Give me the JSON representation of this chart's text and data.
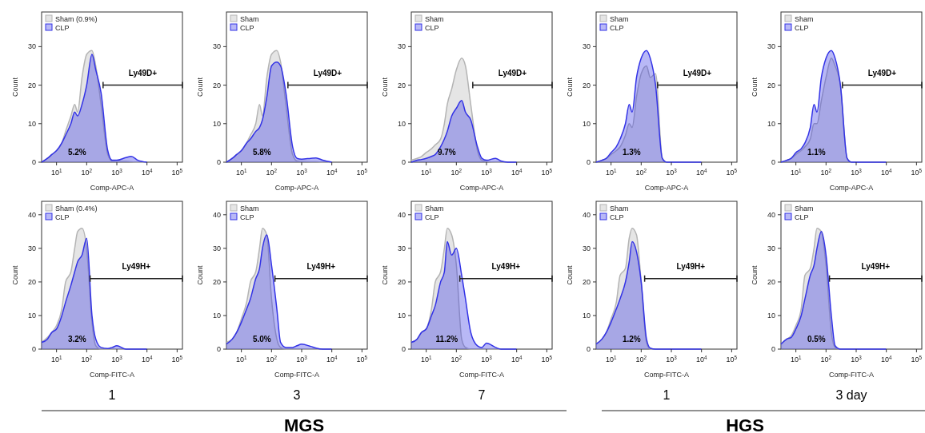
{
  "chart_data": [
    {
      "type": "area",
      "xlabel": "Comp-APC-A",
      "ylabel": "Count",
      "log": "x",
      "legend": "top left",
      "xlim": [
        3.2,
        150000
      ],
      "ylim": [
        0,
        39
      ],
      "xticks": [
        {
          "value": 10,
          "label": "10$^{1}$"
        },
        {
          "value": 100,
          "label": "10$^{2}$"
        },
        {
          "value": 1000,
          "label": "10$^{3}$"
        },
        {
          "value": 10000,
          "label": "10$^{4}$"
        },
        {
          "value": 100000,
          "label": "10$^{5}$"
        }
      ],
      "yticks": [
        0,
        10,
        20,
        30
      ],
      "x": [
        3.2,
        5,
        7,
        10,
        15,
        20,
        30,
        40,
        50,
        70,
        100,
        150,
        200,
        300,
        500,
        700,
        1000,
        2000,
        3000,
        5000,
        10000
      ],
      "series": [
        {
          "name": "Sham (0.9%)",
          "color": "#b4b4b4",
          "values": [
            0,
            1,
            2,
            3,
            5,
            8,
            12,
            15,
            13,
            22,
            28,
            29,
            25,
            15,
            2,
            0.3,
            0.2,
            0.2,
            0.1,
            0,
            0
          ]
        },
        {
          "name": "CLP",
          "color": "#3333e6",
          "values": [
            0,
            1,
            2,
            3,
            5,
            7,
            10,
            13,
            12,
            15,
            20,
            28,
            24,
            18,
            3,
            0.5,
            0.5,
            1.2,
            1.5,
            0.5,
            0
          ]
        },
        {
          "name": "Ly49D+",
          "type": "line",
          "color": "#222222",
          "x": [
            350,
            150000
          ],
          "values": [
            20,
            20
          ]
        }
      ],
      "annotations": [
        "5.2%"
      ]
    },
    {
      "type": "area",
      "xlabel": "Comp-APC-A",
      "ylabel": "Count",
      "log": "x",
      "legend": "top left",
      "xlim": [
        3.2,
        150000
      ],
      "ylim": [
        0,
        39
      ],
      "xticks": [
        {
          "value": 10,
          "label": "10$^{1}$"
        },
        {
          "value": 100,
          "label": "10$^{2}$"
        },
        {
          "value": 1000,
          "label": "10$^{3}$"
        },
        {
          "value": 10000,
          "label": "10$^{4}$"
        },
        {
          "value": 100000,
          "label": "10$^{5}$"
        }
      ],
      "yticks": [
        0,
        10,
        20,
        30
      ],
      "x": [
        3.2,
        5,
        7,
        10,
        15,
        20,
        30,
        40,
        50,
        70,
        100,
        150,
        200,
        300,
        500,
        700,
        1000,
        2000,
        3000,
        5000,
        10000
      ],
      "series": [
        {
          "name": "Sham",
          "color": "#b4b4b4",
          "values": [
            0,
            1,
            2,
            3,
            5,
            7,
            10,
            15,
            12,
            22,
            28,
            29,
            26,
            15,
            2,
            0.3,
            0.2,
            0.1,
            0.1,
            0,
            0
          ]
        },
        {
          "name": "CLP",
          "color": "#3333e6",
          "values": [
            0,
            1,
            2,
            3,
            5,
            6,
            8,
            9,
            11,
            17,
            25,
            26,
            25,
            18,
            4,
            1,
            0.8,
            1,
            1.1,
            0.5,
            0
          ]
        },
        {
          "name": "Ly49D+",
          "type": "line",
          "color": "#222222",
          "x": [
            350,
            150000
          ],
          "values": [
            20,
            20
          ]
        }
      ],
      "annotations": [
        "5.8%"
      ]
    },
    {
      "type": "area",
      "xlabel": "Comp-APC-A",
      "ylabel": "Count",
      "log": "x",
      "legend": "top left",
      "xlim": [
        3.2,
        150000
      ],
      "ylim": [
        0,
        39
      ],
      "xticks": [
        {
          "value": 10,
          "label": "10$^{1}$"
        },
        {
          "value": 100,
          "label": "10$^{2}$"
        },
        {
          "value": 1000,
          "label": "10$^{3}$"
        },
        {
          "value": 10000,
          "label": "10$^{4}$"
        },
        {
          "value": 100000,
          "label": "10$^{5}$"
        }
      ],
      "yticks": [
        0,
        10,
        20,
        30
      ],
      "x": [
        3.2,
        5,
        7,
        10,
        15,
        20,
        30,
        40,
        50,
        70,
        100,
        150,
        200,
        300,
        500,
        700,
        1000,
        2000,
        3000,
        5000,
        10000
      ],
      "series": [
        {
          "name": "Sham",
          "color": "#b4b4b4",
          "values": [
            0.5,
            1,
            1.5,
            2.5,
            3.5,
            4.5,
            6,
            10,
            15,
            19,
            24,
            27,
            25,
            15,
            3,
            0.5,
            0.2,
            0,
            0,
            0,
            0
          ]
        },
        {
          "name": "CLP",
          "color": "#3333e6",
          "values": [
            0,
            0.5,
            0.7,
            1,
            1.5,
            2,
            4,
            6,
            8,
            12,
            14,
            16,
            13,
            11,
            4,
            1,
            0.5,
            1,
            0.3,
            0,
            0
          ]
        },
        {
          "name": "Ly49D+",
          "type": "line",
          "color": "#222222",
          "x": [
            350,
            150000
          ],
          "values": [
            20,
            20
          ]
        }
      ],
      "annotations": [
        "9.7%"
      ]
    },
    {
      "type": "area",
      "xlabel": "Comp-APC-A",
      "ylabel": "Count",
      "log": "x",
      "legend": "top left",
      "xlim": [
        3.2,
        150000
      ],
      "ylim": [
        0,
        39
      ],
      "xticks": [
        {
          "value": 10,
          "label": "10$^{1}$"
        },
        {
          "value": 100,
          "label": "10$^{2}$"
        },
        {
          "value": 1000,
          "label": "10$^{3}$"
        },
        {
          "value": 10000,
          "label": "10$^{4}$"
        },
        {
          "value": 100000,
          "label": "10$^{5}$"
        }
      ],
      "yticks": [
        0,
        10,
        20,
        30
      ],
      "x": [
        3.2,
        5,
        7,
        10,
        15,
        20,
        30,
        40,
        50,
        70,
        100,
        150,
        200,
        300,
        500,
        700,
        1000,
        2000,
        3000,
        5000,
        10000
      ],
      "series": [
        {
          "name": "Sham",
          "color": "#b4b4b4",
          "values": [
            0,
            0.5,
            1,
            2,
            3,
            4,
            7,
            10,
            9,
            17,
            23,
            25,
            22,
            23,
            1,
            0,
            0,
            0,
            0,
            0,
            0
          ]
        },
        {
          "name": "CLP",
          "color": "#3333e6",
          "values": [
            0,
            0.5,
            1,
            2.5,
            4,
            6,
            10,
            15,
            13,
            22,
            27,
            29,
            27,
            20,
            1,
            0,
            0,
            0,
            0,
            0,
            0
          ]
        },
        {
          "name": "Ly49D+",
          "type": "line",
          "color": "#222222",
          "x": [
            350,
            150000
          ],
          "values": [
            20,
            20
          ]
        }
      ],
      "annotations": [
        "1.3%"
      ]
    },
    {
      "type": "area",
      "xlabel": "Comp-APC-A",
      "ylabel": "Count",
      "log": "x",
      "legend": "top left",
      "xlim": [
        3.2,
        150000
      ],
      "ylim": [
        0,
        39
      ],
      "xticks": [
        {
          "value": 10,
          "label": "10$^{1}$"
        },
        {
          "value": 100,
          "label": "10$^{2}$"
        },
        {
          "value": 1000,
          "label": "10$^{3}$"
        },
        {
          "value": 10000,
          "label": "10$^{4}$"
        },
        {
          "value": 100000,
          "label": "10$^{5}$"
        }
      ],
      "yticks": [
        0,
        10,
        20,
        30
      ],
      "x": [
        3.2,
        5,
        7,
        10,
        15,
        20,
        30,
        40,
        50,
        70,
        100,
        150,
        200,
        300,
        500,
        700,
        1000,
        2000,
        3000,
        5000,
        10000
      ],
      "series": [
        {
          "name": "Sham",
          "color": "#b4b4b4",
          "values": [
            0,
            0.5,
            1,
            2,
            3,
            4,
            6,
            10,
            10,
            16,
            22,
            27,
            25,
            20,
            1,
            0,
            0,
            0,
            0,
            0,
            0
          ]
        },
        {
          "name": "CLP",
          "color": "#3333e6",
          "values": [
            0,
            0.5,
            1,
            2.5,
            3.5,
            5,
            9,
            15,
            13,
            22,
            27,
            29,
            27,
            20,
            1,
            0,
            0,
            0,
            0,
            0,
            0
          ]
        },
        {
          "name": "Ly49D+",
          "type": "line",
          "color": "#222222",
          "x": [
            350,
            150000
          ],
          "values": [
            20,
            20
          ]
        }
      ],
      "annotations": [
        "1.1%"
      ]
    },
    {
      "type": "area",
      "xlabel": "Comp-FITC-A",
      "ylabel": "Count",
      "log": "x",
      "legend": "top left",
      "xlim": [
        3.2,
        150000
      ],
      "ylim": [
        0,
        44
      ],
      "xticks": [
        {
          "value": 10,
          "label": "10$^{1}$"
        },
        {
          "value": 100,
          "label": "10$^{2}$"
        },
        {
          "value": 1000,
          "label": "10$^{3}$"
        },
        {
          "value": 10000,
          "label": "10$^{4}$"
        },
        {
          "value": 100000,
          "label": "10$^{5}$"
        }
      ],
      "yticks": [
        0,
        10,
        20,
        30,
        40
      ],
      "x": [
        3.2,
        5,
        7,
        10,
        15,
        20,
        30,
        40,
        50,
        70,
        100,
        150,
        200,
        300,
        500,
        700,
        1000,
        2000,
        3000,
        5000,
        10000
      ],
      "series": [
        {
          "name": "Sham (0.4%)",
          "color": "#b4b4b4",
          "values": [
            2,
            3.5,
            5,
            7,
            12,
            20,
            23,
            30,
            35,
            36,
            30,
            8,
            1,
            0,
            0,
            0,
            0,
            0,
            0,
            0,
            0
          ]
        },
        {
          "name": "CLP",
          "color": "#3333e6",
          "values": [
            2,
            3,
            5,
            6,
            10,
            14,
            19,
            23,
            26,
            28,
            33,
            10,
            3,
            0.5,
            0.2,
            0.5,
            1,
            0,
            0,
            0,
            0
          ]
        },
        {
          "name": "Ly49H+",
          "type": "line",
          "color": "#222222",
          "x": [
            130,
            150000
          ],
          "values": [
            21,
            21
          ]
        }
      ],
      "annotations": [
        "3.2%",
        "1"
      ]
    },
    {
      "type": "area",
      "xlabel": "Comp-FITC-A",
      "ylabel": "Count",
      "log": "x",
      "legend": "top left",
      "xlim": [
        3.2,
        150000
      ],
      "ylim": [
        0,
        44
      ],
      "xticks": [
        {
          "value": 10,
          "label": "10$^{1}$"
        },
        {
          "value": 100,
          "label": "10$^{2}$"
        },
        {
          "value": 1000,
          "label": "10$^{3}$"
        },
        {
          "value": 10000,
          "label": "10$^{4}$"
        },
        {
          "value": 100000,
          "label": "10$^{5}$"
        }
      ],
      "yticks": [
        0,
        10,
        20,
        30,
        40
      ],
      "x": [
        3.2,
        5,
        7,
        10,
        15,
        20,
        30,
        40,
        50,
        70,
        100,
        150,
        200,
        300,
        500,
        700,
        1000,
        2000,
        3000,
        5000,
        10000
      ],
      "series": [
        {
          "name": "Sham",
          "color": "#b4b4b4",
          "values": [
            2,
            3,
            5,
            9,
            14,
            20,
            23,
            30,
            36,
            34,
            15,
            3,
            0.5,
            0,
            0,
            0,
            0,
            0,
            0,
            0,
            0
          ]
        },
        {
          "name": "CLP",
          "color": "#3333e6",
          "values": [
            1.5,
            3,
            5,
            8,
            12,
            15,
            21,
            24,
            30,
            34,
            25,
            12,
            2,
            0.5,
            0.5,
            1,
            1.5,
            0.8,
            0.3,
            0,
            0
          ]
        },
        {
          "name": "Ly49H+",
          "type": "line",
          "color": "#222222",
          "x": [
            130,
            150000
          ],
          "values": [
            21,
            21
          ]
        }
      ],
      "annotations": [
        "5.0%",
        "3"
      ]
    },
    {
      "type": "area",
      "xlabel": "Comp-FITC-A",
      "ylabel": "Count",
      "log": "x",
      "legend": "top left",
      "xlim": [
        3.2,
        150000
      ],
      "ylim": [
        0,
        44
      ],
      "xticks": [
        {
          "value": 10,
          "label": "10$^{1}$"
        },
        {
          "value": 100,
          "label": "10$^{2}$"
        },
        {
          "value": 1000,
          "label": "10$^{3}$"
        },
        {
          "value": 10000,
          "label": "10$^{4}$"
        },
        {
          "value": 100000,
          "label": "10$^{5}$"
        }
      ],
      "yticks": [
        0,
        10,
        20,
        30,
        40
      ],
      "x": [
        3.2,
        5,
        7,
        10,
        15,
        20,
        30,
        40,
        50,
        70,
        100,
        150,
        200,
        300,
        500,
        700,
        1000,
        2000,
        3000,
        5000,
        10000
      ],
      "series": [
        {
          "name": "Sham",
          "color": "#b4b4b4",
          "values": [
            2,
            3,
            5,
            6,
            12,
            20,
            23,
            30,
            36,
            34,
            25,
            3,
            0.5,
            0,
            0,
            0,
            0,
            0,
            0,
            0,
            0
          ]
        },
        {
          "name": "CLP",
          "color": "#3333e6",
          "values": [
            2,
            3,
            5,
            6,
            10,
            13,
            20,
            23,
            32,
            28,
            30,
            22,
            15,
            5,
            1,
            0.5,
            1.8,
            0.5,
            0,
            0,
            0
          ]
        },
        {
          "name": "Ly49H+",
          "type": "line",
          "color": "#222222",
          "x": [
            130,
            150000
          ],
          "values": [
            21,
            21
          ]
        }
      ],
      "annotations": [
        "11.2%",
        "7"
      ]
    },
    {
      "type": "area",
      "xlabel": "Comp-FITC-A",
      "ylabel": "Count",
      "log": "x",
      "legend": "top left",
      "xlim": [
        3.2,
        150000
      ],
      "ylim": [
        0,
        44
      ],
      "xticks": [
        {
          "value": 10,
          "label": "10$^{1}$"
        },
        {
          "value": 100,
          "label": "10$^{2}$"
        },
        {
          "value": 1000,
          "label": "10$^{3}$"
        },
        {
          "value": 10000,
          "label": "10$^{4}$"
        },
        {
          "value": 100000,
          "label": "10$^{5}$"
        }
      ],
      "yticks": [
        0,
        10,
        20,
        30,
        40
      ],
      "x": [
        3.2,
        5,
        7,
        10,
        15,
        20,
        30,
        40,
        50,
        70,
        100,
        150,
        200,
        300,
        500,
        700,
        1000,
        2000,
        3000,
        5000,
        10000
      ],
      "series": [
        {
          "name": "Sham",
          "color": "#b4b4b4",
          "values": [
            1.5,
            3,
            5,
            9,
            14,
            22,
            24,
            33,
            36,
            34,
            20,
            2,
            0,
            0,
            0,
            0,
            0,
            0,
            0,
            0,
            0
          ]
        },
        {
          "name": "CLP",
          "color": "#3333e6",
          "values": [
            1.5,
            3,
            5,
            8,
            12,
            15,
            20,
            26,
            32,
            29,
            20,
            3,
            0.3,
            0,
            0,
            0,
            0,
            0,
            0,
            0,
            0
          ]
        },
        {
          "name": "Ly49H+",
          "type": "line",
          "color": "#222222",
          "x": [
            130,
            150000
          ],
          "values": [
            21,
            21
          ]
        }
      ],
      "annotations": [
        "1.2%",
        "1"
      ]
    },
    {
      "type": "area",
      "xlabel": "Comp-FITC-A",
      "ylabel": "Count",
      "log": "x",
      "legend": "top left",
      "xlim": [
        3.2,
        150000
      ],
      "ylim": [
        0,
        44
      ],
      "xticks": [
        {
          "value": 10,
          "label": "10$^{1}$"
        },
        {
          "value": 100,
          "label": "10$^{2}$"
        },
        {
          "value": 1000,
          "label": "10$^{3}$"
        },
        {
          "value": 10000,
          "label": "10$^{4}$"
        },
        {
          "value": 100000,
          "label": "10$^{5}$"
        }
      ],
      "yticks": [
        0,
        10,
        20,
        30,
        40
      ],
      "x": [
        3.2,
        5,
        7,
        10,
        15,
        20,
        30,
        40,
        50,
        70,
        100,
        150,
        200,
        300,
        500,
        700,
        1000,
        2000,
        3000,
        5000,
        10000
      ],
      "series": [
        {
          "name": "Sham",
          "color": "#b4b4b4",
          "values": [
            1.5,
            3,
            4,
            7,
            12,
            22,
            24,
            30,
            36,
            35,
            25,
            5,
            0.5,
            0,
            0,
            0,
            0,
            0,
            0,
            0,
            0
          ]
        },
        {
          "name": "CLP",
          "color": "#3333e6",
          "values": [
            1.5,
            3,
            3.5,
            6,
            10,
            15,
            22,
            25,
            30,
            35,
            28,
            10,
            1,
            0,
            0,
            0,
            0,
            0,
            0,
            0,
            0
          ]
        },
        {
          "name": "Ly49H+",
          "type": "line",
          "color": "#222222",
          "x": [
            130,
            150000
          ],
          "values": [
            21,
            21
          ]
        }
      ],
      "annotations": [
        "0.5%",
        "3 day"
      ]
    },
    {
      "type": "other",
      "annotations": [
        "MGS",
        "HGS"
      ]
    }
  ]
}
